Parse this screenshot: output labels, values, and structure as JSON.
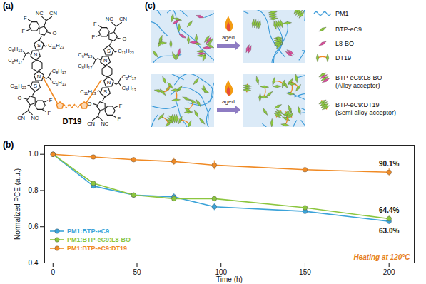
{
  "chart_data": {
    "type": "line",
    "x": [
      0,
      24,
      48,
      72,
      96,
      150,
      200
    ],
    "xlabel": "Time (h)",
    "ylabel": "Normalized PCE (a.u.)",
    "xlim": [
      -5,
      215
    ],
    "xticks": [
      0,
      50,
      100,
      150,
      200
    ],
    "ylim": [
      0.4,
      1.05
    ],
    "yticks": [
      0.4,
      0.6,
      0.8,
      {
        "value": 1,
        "label": "1.0"
      }
    ],
    "legend": "lower left",
    "marker": "circle",
    "series": [
      {
        "name": "PM1:BTP-eC9",
        "color": "#3ba3d9",
        "values": [
          1.0,
          0.825,
          0.775,
          0.765,
          0.71,
          0.685,
          0.63
        ],
        "errors": [
          0.01,
          0.01,
          0.01,
          0.02,
          0.02,
          0.015,
          0.015
        ],
        "value_labels": [
          null,
          null,
          null,
          null,
          null,
          null,
          "63.0%"
        ]
      },
      {
        "name": "PM1:BTP-eC9:L8-BO",
        "color": "#8cc63f",
        "values": [
          1.0,
          0.84,
          0.775,
          0.755,
          0.755,
          0.705,
          0.644
        ],
        "errors": [
          0.01,
          0.01,
          0.01,
          0.015,
          0.015,
          0.01,
          0.015
        ],
        "value_labels": [
          null,
          null,
          null,
          null,
          null,
          null,
          "64.4%"
        ]
      },
      {
        "name": "PM1:BTP-eC9:DT19",
        "color": "#f08a24",
        "values": [
          1.0,
          0.985,
          0.97,
          0.96,
          0.94,
          0.915,
          0.901
        ],
        "errors": [
          0.005,
          0.01,
          0.01,
          0.02,
          0.025,
          0.02,
          0.02
        ],
        "value_labels": [
          null,
          null,
          null,
          null,
          null,
          null,
          "90.1%"
        ]
      }
    ],
    "annotations": [
      "Heating at 120°C"
    ]
  },
  "figure": {
    "panel_labels": [
      "(a)",
      "(b)",
      "(c)"
    ],
    "structure": {
      "name": "DT19",
      "unit_labels": [
        "NC",
        "CN",
        "O",
        "F",
        "F",
        "S",
        "N",
        "C11H23",
        "C6H13",
        "C8H17",
        "NC",
        "CN",
        "O",
        "F",
        "F",
        "S",
        "N",
        "C11H23",
        "C6H13",
        "C8H17"
      ]
    },
    "diagram": {
      "arrow_labels": [
        "aged",
        "aged"
      ],
      "legend": [
        {
          "label": "PM1"
        },
        {
          "label": "BTP-eC9"
        },
        {
          "label": "L8-BO"
        },
        {
          "label": "DT19"
        },
        {
          "label": "BTP-eC9:L8-BO",
          "note": "(Alloy acceptor)"
        },
        {
          "label": "BTP-eC9:DT19",
          "note": "(Semi-alloy acceptor)"
        }
      ]
    }
  }
}
